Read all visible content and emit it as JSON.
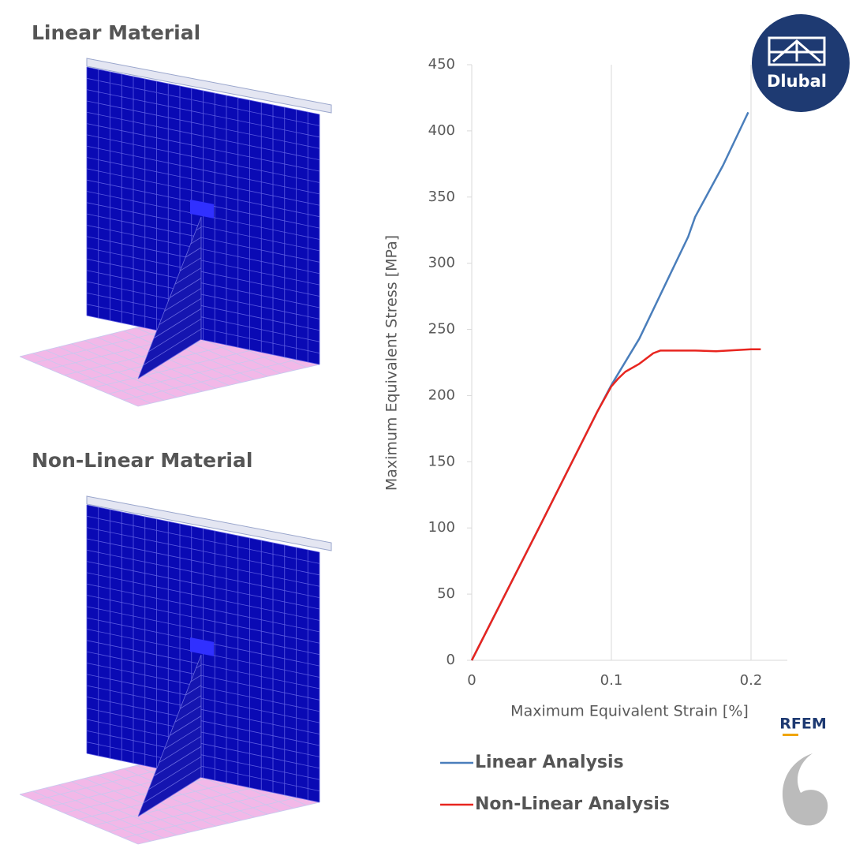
{
  "panels": [
    {
      "title": "Linear Material"
    },
    {
      "title": "Non-Linear Material"
    }
  ],
  "logos": {
    "brand": "Dlubal",
    "product": "RFEM"
  },
  "chart_data": {
    "type": "line",
    "x_label": "Maximum Equivalent Strain [%]",
    "y_label": "Maximum Equivalent Stress [MPa]",
    "xlim": [
      0,
      0.226
    ],
    "xticks": [
      0,
      0.1,
      0.2
    ],
    "ylim": [
      0,
      450
    ],
    "yticks": [
      0,
      50,
      100,
      150,
      200,
      250,
      300,
      350,
      400,
      450
    ],
    "grid": "x",
    "series": [
      {
        "name": "Linear Analysis",
        "color": "#4a7ebb",
        "x": [
          0,
          0.05,
          0.09,
          0.1,
          0.12,
          0.14,
          0.155,
          0.16,
          0.18,
          0.198
        ],
        "values": [
          0,
          104,
          188,
          208,
          243,
          287,
          320,
          335,
          374,
          414
        ]
      },
      {
        "name": "Non-Linear Analysis",
        "color": "#e8251f",
        "x": [
          0,
          0.05,
          0.09,
          0.1,
          0.105,
          0.11,
          0.12,
          0.13,
          0.135,
          0.14,
          0.16,
          0.175,
          0.2,
          0.207
        ],
        "values": [
          0,
          104,
          188,
          207,
          213,
          218,
          224,
          232,
          234,
          234,
          234,
          233.5,
          235,
          235
        ]
      }
    ]
  }
}
